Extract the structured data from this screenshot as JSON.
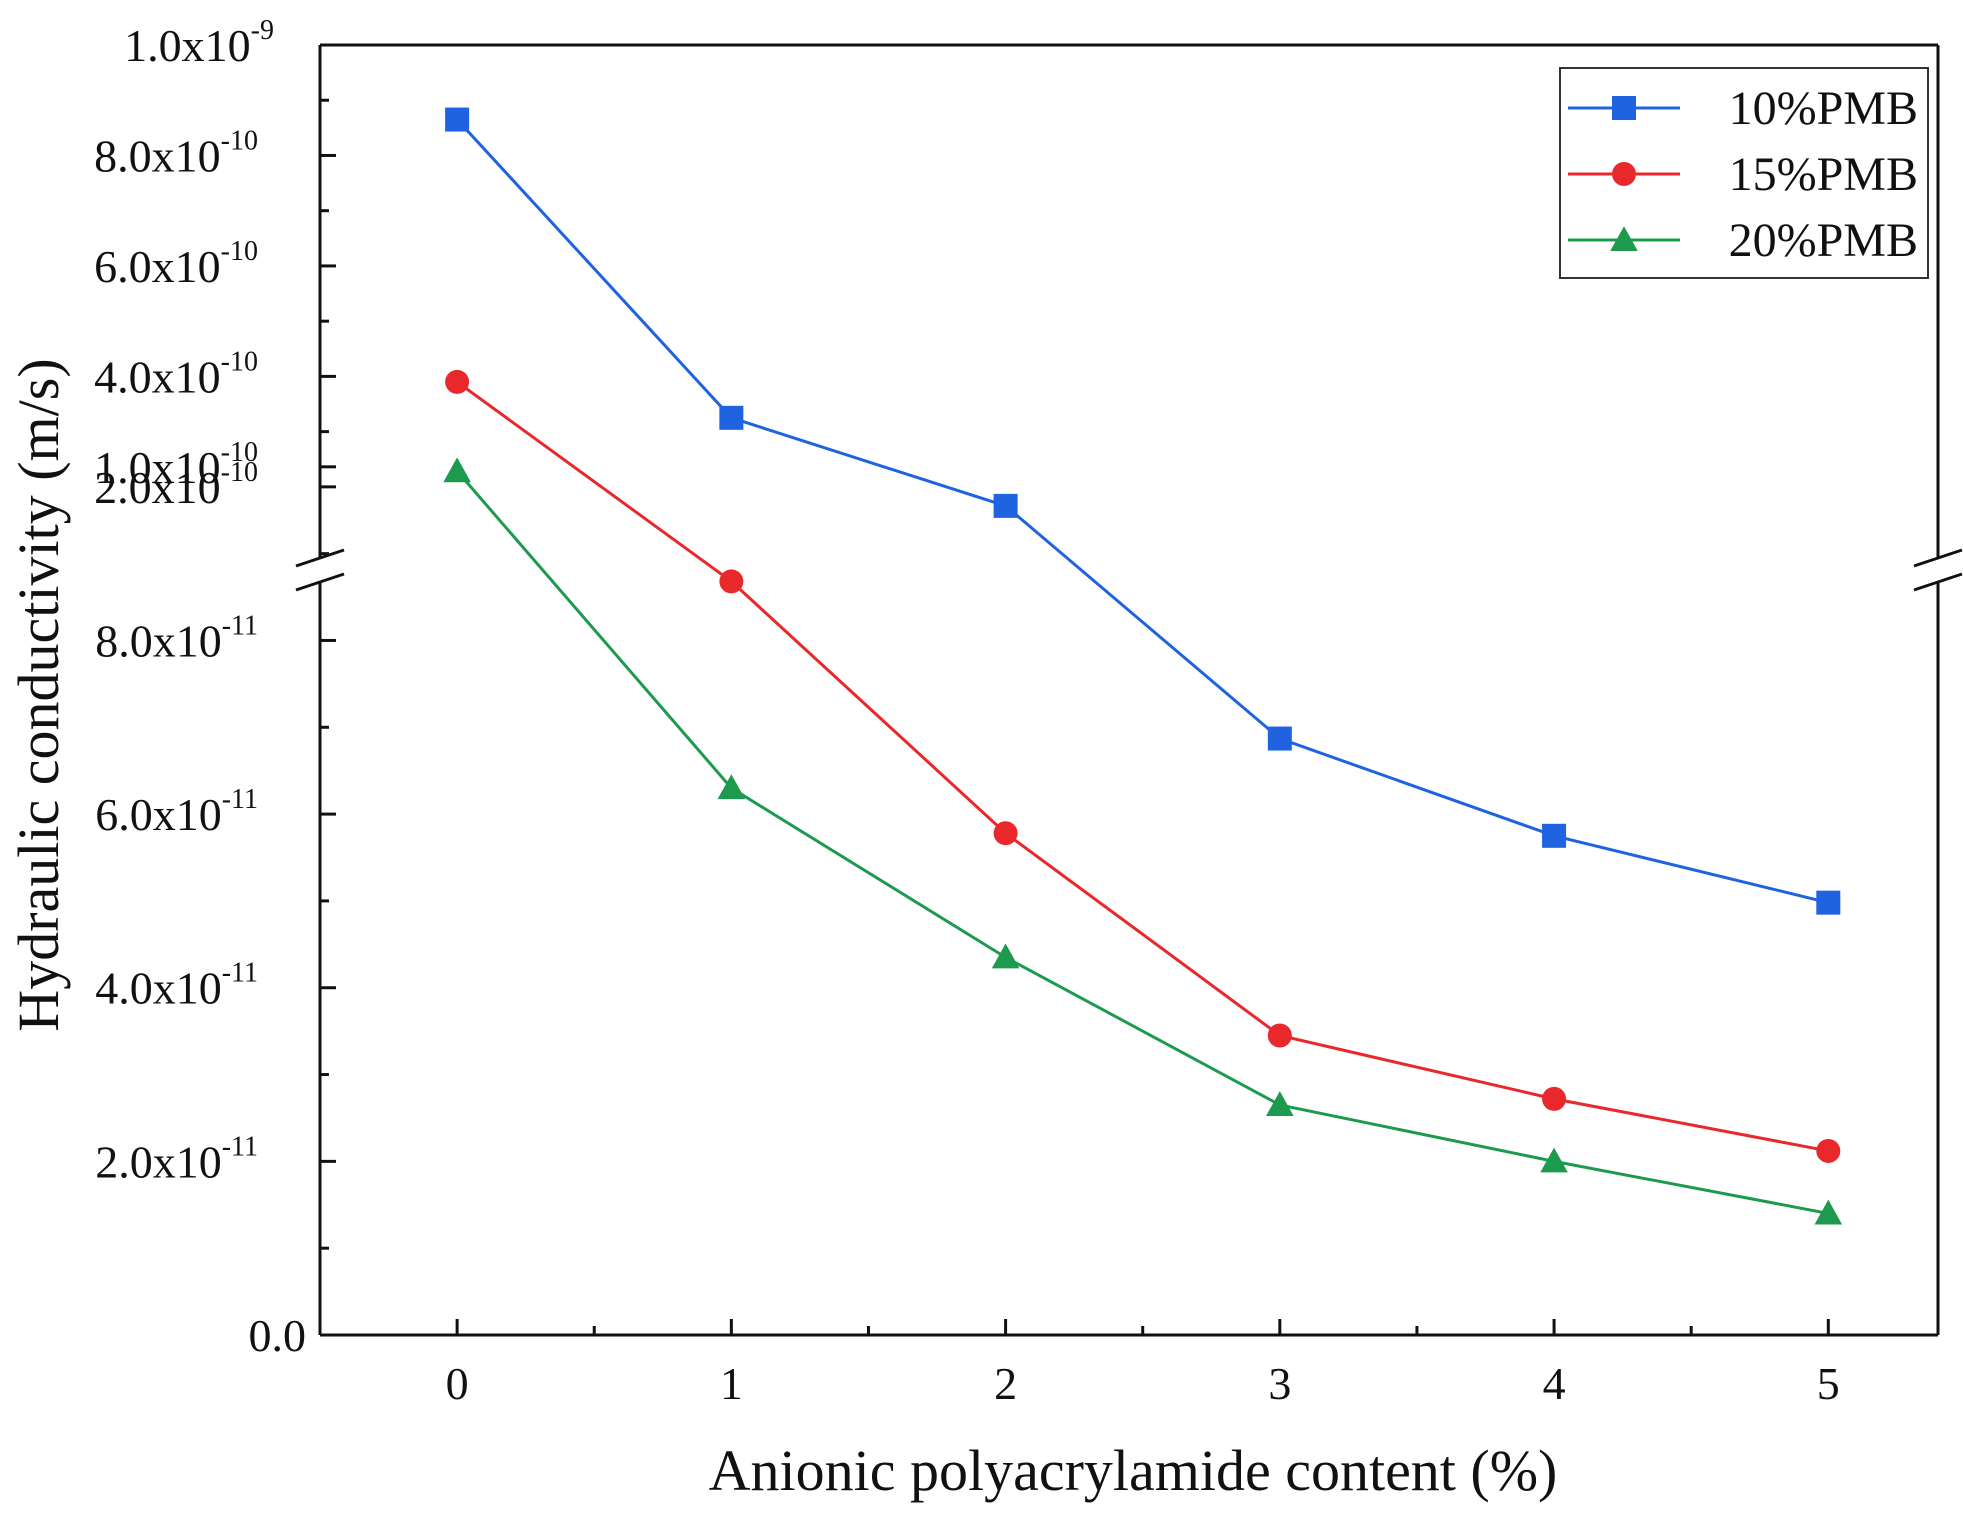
{
  "chart_data": {
    "type": "line",
    "title": "",
    "xlabel": "Anionic polyacrylamide content (%)",
    "ylabel": "Hydraulic conductivity (m/s)",
    "x": [
      0,
      1,
      2,
      3,
      4,
      5
    ],
    "xlim": [
      -0.5,
      5.4
    ],
    "x_ticks": [
      "0",
      "1",
      "2",
      "3",
      "4",
      "5"
    ],
    "y_axis_break": {
      "lower_segment_range": [
        0,
        1.1e-10
      ],
      "upper_segment_range": [
        1.4e-10,
        1e-09
      ]
    },
    "y_tick_labels": [
      {
        "value": 0,
        "mantissa": "0.0",
        "exponent": ""
      },
      {
        "value": 2e-11,
        "mantissa": "2.0x10",
        "exponent": "-11"
      },
      {
        "value": 4e-11,
        "mantissa": "4.0x10",
        "exponent": "-11"
      },
      {
        "value": 6e-11,
        "mantissa": "6.0x10",
        "exponent": "-11"
      },
      {
        "value": 8e-11,
        "mantissa": "8.0x10",
        "exponent": "-11"
      },
      {
        "value": 1e-10,
        "mantissa": "1.0x10",
        "exponent": "-10"
      },
      {
        "value": 2e-10,
        "mantissa": "2.0x10",
        "exponent": "-10"
      },
      {
        "value": 4e-10,
        "mantissa": "4.0x10",
        "exponent": "-10"
      },
      {
        "value": 6e-10,
        "mantissa": "6.0x10",
        "exponent": "-10"
      },
      {
        "value": 8e-10,
        "mantissa": "8.0x10",
        "exponent": "-10"
      },
      {
        "value": 1e-09,
        "mantissa": "1.0x10",
        "exponent": "-9"
      }
    ],
    "series": [
      {
        "name": "10%PMB",
        "color": "#1f63e0",
        "marker": "square",
        "values": [
          8.65e-10,
          3.25e-10,
          9.55e-11,
          6.87e-11,
          5.75e-11,
          4.98e-11
        ]
      },
      {
        "name": "15%PMB",
        "color": "#e8282b",
        "marker": "circle",
        "values": [
          3.9e-10,
          8.68e-11,
          5.78e-11,
          3.45e-11,
          2.72e-11,
          2.12e-11
        ]
      },
      {
        "name": "20%PMB",
        "color": "#1d9a4e",
        "marker": "triangle",
        "values": [
          9.95e-11,
          6.3e-11,
          4.35e-11,
          2.65e-11,
          2e-11,
          1.4e-11
        ]
      }
    ],
    "legend_position": "top-right",
    "grid": false
  }
}
